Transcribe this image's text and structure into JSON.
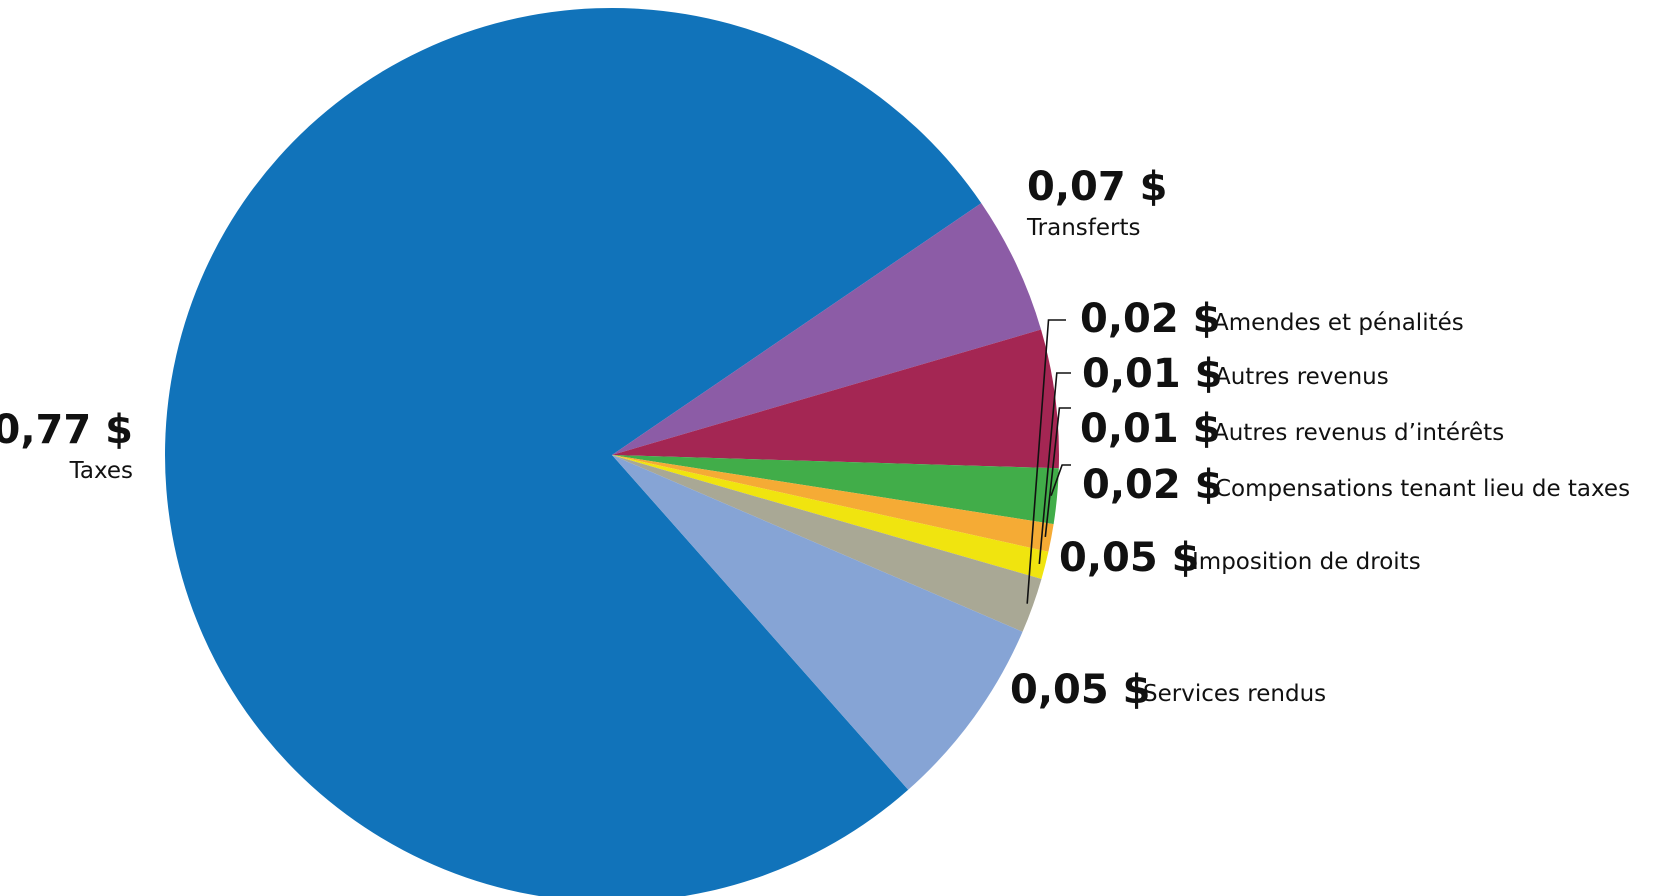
{
  "chart_data": {
    "type": "pie",
    "title": "",
    "currency_symbol": "$",
    "slices": [
      {
        "label": "Taxes",
        "value_label": "0,77",
        "value": 0.77,
        "color": "#1173ba"
      },
      {
        "label": "Services rendus",
        "value_label": "0,05",
        "value": 0.05,
        "color": "#8c5ca6"
      },
      {
        "label": "Imposition de droits",
        "value_label": "0,05",
        "value": 0.05,
        "color": "#a42653"
      },
      {
        "label": "Compensations tenant lieu de taxes",
        "value_label": "0,02",
        "value": 0.02,
        "color": "#41ad49"
      },
      {
        "label": "Autres revenus d’intérêts",
        "value_label": "0,01",
        "value": 0.01,
        "color": "#f5ab35"
      },
      {
        "label": "Autres revenus",
        "value_label": "0,01",
        "value": 0.01,
        "color": "#f0e40f"
      },
      {
        "label": "Amendes et pénalités",
        "value_label": "0,02",
        "value": 0.02,
        "color": "#a9a895"
      },
      {
        "label": "Transferts",
        "value_label": "0,07",
        "value": 0.07,
        "color": "#86a4d5"
      }
    ]
  }
}
